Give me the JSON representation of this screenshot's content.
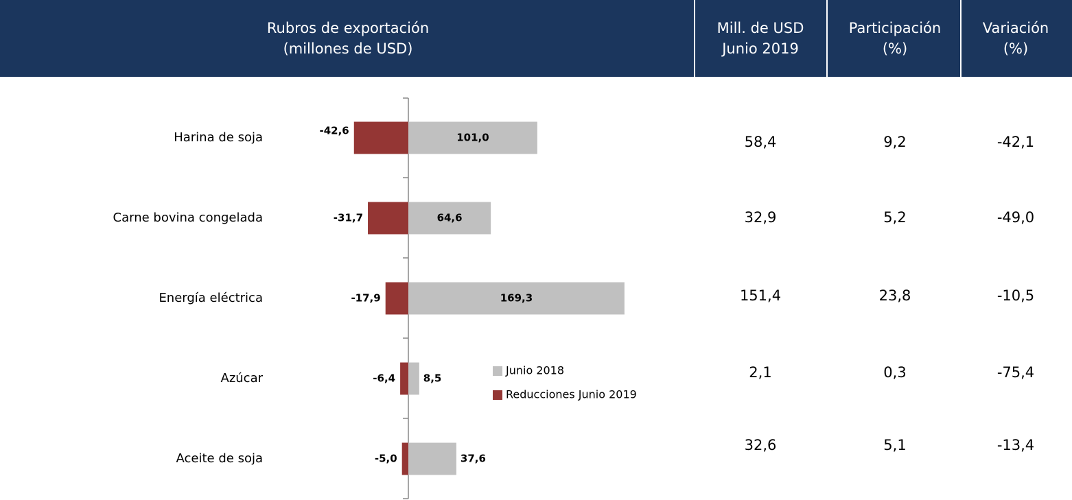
{
  "table": {
    "header": [
      [
        "Rubros de exportación",
        "(millones de USD)"
      ],
      [
        "Mill. de USD",
        "Junio 2019"
      ],
      [
        "Participación",
        "(%)"
      ],
      [
        "Variación",
        "(%)"
      ]
    ],
    "rows": [
      [
        "58,4",
        "9,2",
        "-42,1"
      ],
      [
        "32,9",
        "5,2",
        "-49,0"
      ],
      [
        "151,4",
        "23,8",
        "-10,5"
      ],
      [
        "2,1",
        "0,3",
        "-75,4"
      ],
      [
        "32,6",
        "5,1",
        "-13,4"
      ]
    ]
  },
  "chart_data": {
    "type": "bar",
    "orientation": "horizontal",
    "categories": [
      "Harina de soja",
      "Carne bovina congelada",
      "Energía eléctrica",
      "Azúcar",
      "Aceite de soja"
    ],
    "series": [
      {
        "name": "Junio 2018",
        "color": "#c0c0c0",
        "values": [
          101.0,
          64.6,
          169.3,
          8.5,
          37.6
        ],
        "value_labels": [
          "101,0",
          "64,6",
          "169,3",
          "8,5",
          "37,6"
        ]
      },
      {
        "name": "Reducciones Junio 2019",
        "color": "#943634",
        "values": [
          -42.6,
          -31.7,
          -17.9,
          -6.4,
          -5.0
        ],
        "value_labels": [
          "-42,6",
          "-31,7",
          "-17,9",
          "-6,4",
          "-5,0"
        ]
      }
    ]
  }
}
